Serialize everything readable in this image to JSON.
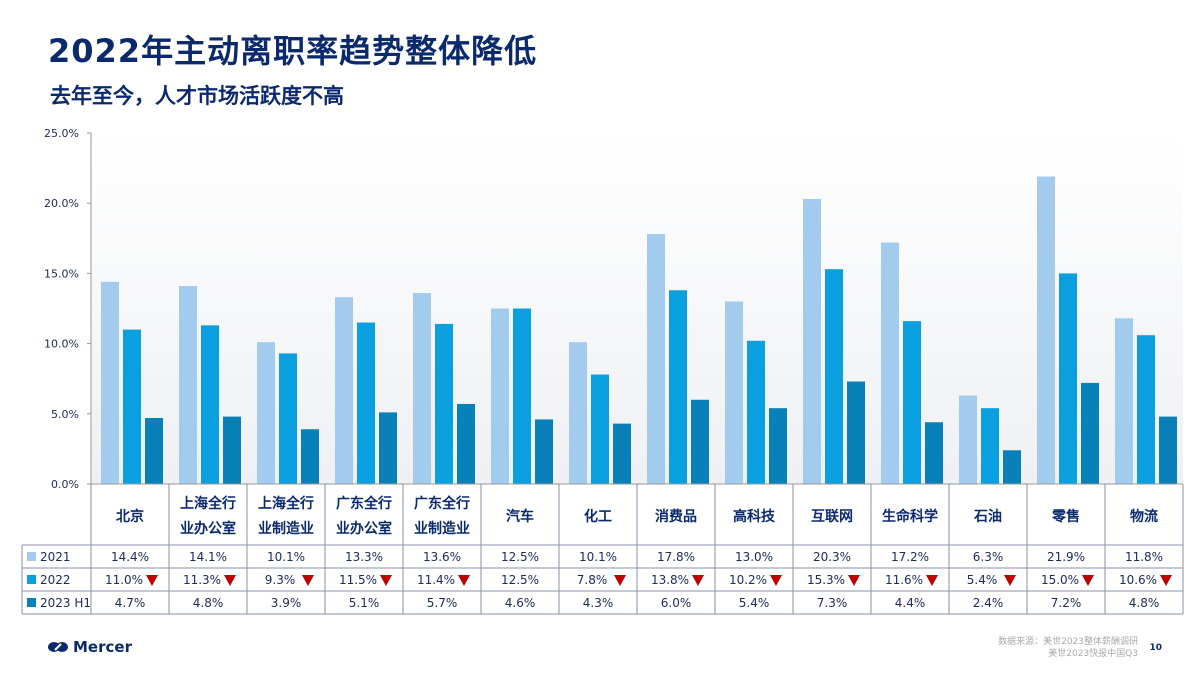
{
  "header": {
    "title": "2022年主动离职率趋势整体降低",
    "subtitle": "去年至今，人才市场活跃度不高"
  },
  "chart_data": {
    "type": "bar",
    "ylim": [
      0,
      25
    ],
    "yticks": [
      "0.0%",
      "5.0%",
      "10.0%",
      "15.0%",
      "20.0%",
      "25.0%"
    ],
    "categories": [
      [
        "北京"
      ],
      [
        "上海全行",
        "业办公室"
      ],
      [
        "上海全行",
        "业制造业"
      ],
      [
        "广东全行",
        "业办公室"
      ],
      [
        "广东全行",
        "业制造业"
      ],
      [
        "汽车"
      ],
      [
        "化工"
      ],
      [
        "消费品"
      ],
      [
        "高科技"
      ],
      [
        "互联网"
      ],
      [
        "生命科学"
      ],
      [
        "石油"
      ],
      [
        "零售"
      ],
      [
        "物流"
      ]
    ],
    "series": [
      {
        "name": "2021",
        "color": "#a3cbee",
        "values": [
          14.4,
          14.1,
          10.1,
          13.3,
          13.6,
          12.5,
          10.1,
          17.8,
          13.0,
          20.3,
          17.2,
          6.3,
          21.9,
          11.8
        ]
      },
      {
        "name": "2022",
        "color": "#0aa0e0",
        "values": [
          11.0,
          11.3,
          9.3,
          11.5,
          11.4,
          12.5,
          7.8,
          13.8,
          10.2,
          15.3,
          11.6,
          5.4,
          15.0,
          10.6
        ],
        "down_marker": [
          true,
          true,
          true,
          true,
          true,
          false,
          true,
          true,
          true,
          true,
          true,
          true,
          true,
          true
        ]
      },
      {
        "name": "2023 H1",
        "color": "#0a80b8",
        "values": [
          4.7,
          4.8,
          3.9,
          5.1,
          5.7,
          4.6,
          4.3,
          6.0,
          5.4,
          7.3,
          4.4,
          2.4,
          7.2,
          4.8
        ]
      }
    ],
    "down_marker_color": "#c00000",
    "grid": false,
    "legend": "table"
  },
  "footer": {
    "brand": "Mercer",
    "source_line1": "数据来源：美世2023整体薪酬调研",
    "source_line2": "美世2023快报中国Q3",
    "page": "10"
  }
}
